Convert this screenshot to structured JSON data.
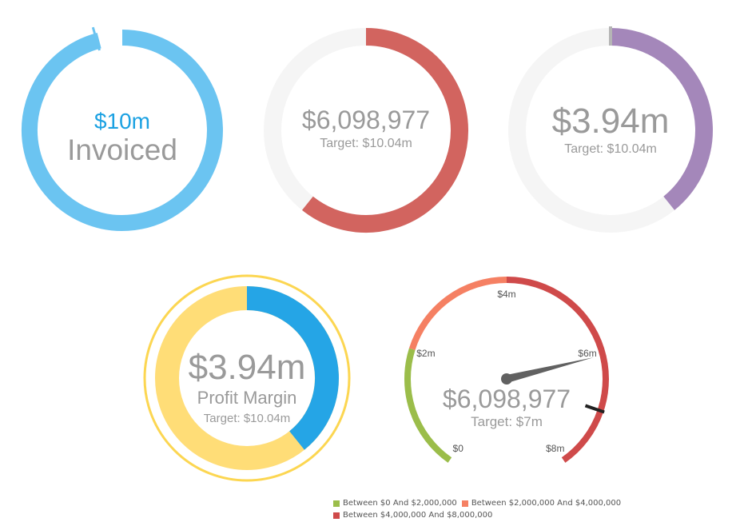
{
  "chart_data": [
    {
      "type": "gauge",
      "id": "invoiced",
      "value_text": "$10m",
      "label": "Invoiced",
      "fill_fraction": 0.96,
      "colors": {
        "fill": "#6bc4f1",
        "value_text": "#1ba1e2",
        "label": "#9a9a9a",
        "marker": "#6bc4f1"
      }
    },
    {
      "type": "gauge",
      "id": "revenue",
      "value": 6098977,
      "target": 10040000,
      "value_text": "$6,098,977",
      "target_text": "Target: $10.04m",
      "colors": {
        "fill": "#d2645f",
        "track": "#f5f5f5",
        "text": "#9a9a9a"
      }
    },
    {
      "type": "gauge",
      "id": "profit",
      "value": 3940000,
      "target": 10040000,
      "value_text": "$3.94m",
      "target_text": "Target: $10.04m",
      "colors": {
        "fill": "#a487ba",
        "track": "#f5f5f5",
        "text": "#9a9a9a",
        "marker": "#b5b5b5"
      }
    },
    {
      "type": "pie",
      "id": "profit-margin",
      "value": 3940000,
      "target": 10040000,
      "value_text": "$3.94m",
      "label": "Profit Margin",
      "target_text": "Target: $10.04m",
      "colors": {
        "value": "#25a5e6",
        "remainder": "#ffdd77",
        "outer_ring": "#fcd651",
        "text": "#9a9a9a"
      }
    },
    {
      "type": "gauge",
      "id": "dial",
      "min": 0,
      "max": 8000000,
      "value": 6098977,
      "target": 7000000,
      "value_text": "$6,098,977",
      "target_text": "Target: $7m",
      "ticks": [
        {
          "value": 0,
          "label": "$0"
        },
        {
          "value": 2000000,
          "label": "$2m"
        },
        {
          "value": 4000000,
          "label": "$4m"
        },
        {
          "value": 6000000,
          "label": "$6m"
        },
        {
          "value": 8000000,
          "label": "$8m"
        }
      ],
      "bands": [
        {
          "from": 0,
          "to": 2000000,
          "color": "#9bbd4a",
          "legend": "Between $0 And $2,000,000"
        },
        {
          "from": 2000000,
          "to": 4000000,
          "color": "#f58063",
          "legend": "Between $2,000,000 And $4,000,000"
        },
        {
          "from": 4000000,
          "to": 8000000,
          "color": "#cf4a4a",
          "legend": "Between $4,000,000 And $8,000,000"
        }
      ],
      "legend_placement": "bottom",
      "colors": {
        "needle": "#616161",
        "target_marker": "#222222",
        "text": "#9a9a9a",
        "tick_text": "#555555"
      }
    }
  ]
}
